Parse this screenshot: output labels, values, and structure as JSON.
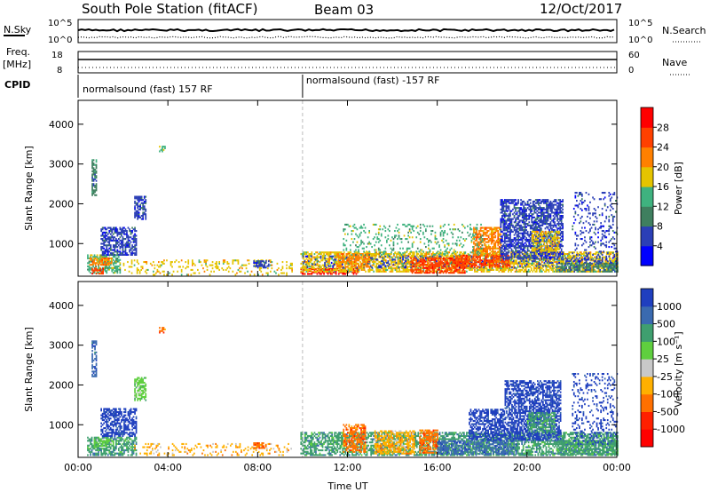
{
  "header": {
    "station": "South Pole Station (fitACF)",
    "beam": "Beam 03",
    "date": "12/Oct/2017"
  },
  "top_panels": {
    "nsky_label": "N.Sky",
    "nsky_ticks": [
      "10^5",
      "10^0"
    ],
    "nsearch_label": "N.Search",
    "nsearch_ticks": [
      "10^5",
      "10^0"
    ],
    "freq_label_1": "Freq.",
    "freq_label_2": "[MHz]",
    "freq_ticks": [
      "18",
      "8"
    ],
    "nave_label": "Nave",
    "nave_ticks": [
      "60",
      "0"
    ],
    "cpid_label": "CPID",
    "cpid_segments": [
      {
        "label": "normalsound (fast) 157 RF",
        "start_hour": 0
      },
      {
        "label": "normalsound (fast) -157 RF",
        "start_hour": 10
      }
    ]
  },
  "chart_data": [
    {
      "type": "heatmap",
      "title": "",
      "xlabel": "",
      "ylabel": "Slant Range [km]",
      "xlim": [
        0,
        24
      ],
      "ylim": [
        180,
        4600
      ],
      "xticks": [
        "00:00",
        "04:00",
        "08:00",
        "12:00",
        "16:00",
        "20:00",
        "00:00"
      ],
      "yticks": [
        "1000",
        "2000",
        "3000",
        "4000"
      ],
      "colorbar": {
        "label": "Power [dB]",
        "ticks": [
          "4",
          "8",
          "12",
          "16",
          "20",
          "24",
          "28"
        ],
        "colors": [
          "#0000ff",
          "#2b3fb6",
          "#3f7f5f",
          "#3fb27f",
          "#e5c400",
          "#ff8000",
          "#ff4000",
          "#ff0000"
        ]
      },
      "regions": [
        {
          "t": [
            0.4,
            1.9
          ],
          "r": [
            250,
            700
          ],
          "level": 3
        },
        {
          "t": [
            0.5,
            1.5
          ],
          "r": [
            450,
            620
          ],
          "level": 5
        },
        {
          "t": [
            0.6,
            1.1
          ],
          "r": [
            230,
            360
          ],
          "level": 6
        },
        {
          "t": [
            1.0,
            2.6
          ],
          "r": [
            700,
            1400
          ],
          "level": 1
        },
        {
          "t": [
            2.5,
            3.0
          ],
          "r": [
            1600,
            2200
          ],
          "level": 1
        },
        {
          "t": [
            0.6,
            0.8
          ],
          "r": [
            2200,
            3100
          ],
          "level": 2
        },
        {
          "t": [
            3.6,
            3.9
          ],
          "r": [
            3300,
            3450
          ],
          "level": 3
        },
        {
          "t": [
            2.0,
            9.5
          ],
          "r": [
            200,
            600
          ],
          "level": 4,
          "sparse": true
        },
        {
          "t": [
            7.8,
            8.5
          ],
          "r": [
            380,
            560
          ],
          "level": 1
        },
        {
          "t": [
            9.9,
            12.5
          ],
          "r": [
            220,
            380
          ],
          "level": 7
        },
        {
          "t": [
            9.9,
            24.0
          ],
          "r": [
            280,
            800
          ],
          "level": 4
        },
        {
          "t": [
            10.0,
            24.0
          ],
          "r": [
            380,
            700
          ],
          "level": 1,
          "sparse": true
        },
        {
          "t": [
            11.5,
            13.0
          ],
          "r": [
            400,
            760
          ],
          "level": 5
        },
        {
          "t": [
            14.8,
            17.2
          ],
          "r": [
            250,
            640
          ],
          "level": 6
        },
        {
          "t": [
            16.8,
            19.2
          ],
          "r": [
            400,
            700
          ],
          "level": 6
        },
        {
          "t": [
            17.6,
            18.8
          ],
          "r": [
            700,
            1400
          ],
          "level": 5
        },
        {
          "t": [
            11.8,
            18.0
          ],
          "r": [
            700,
            1500
          ],
          "level": 3,
          "sparse": true
        },
        {
          "t": [
            18.8,
            21.6
          ],
          "r": [
            600,
            2100
          ],
          "level": 1
        },
        {
          "t": [
            20.2,
            21.4
          ],
          "r": [
            800,
            1300
          ],
          "level": 4
        },
        {
          "t": [
            21.3,
            24.0
          ],
          "r": [
            280,
            520
          ],
          "level": 2
        },
        {
          "t": [
            22.0,
            24.0
          ],
          "r": [
            500,
            2300
          ],
          "level": 1,
          "sparse": true
        }
      ]
    },
    {
      "type": "heatmap",
      "title": "",
      "xlabel": "Time UT",
      "ylabel": "Slant Range [km]",
      "xlim": [
        0,
        24
      ],
      "ylim": [
        180,
        4600
      ],
      "xticks": [
        "00:00",
        "04:00",
        "08:00",
        "12:00",
        "16:00",
        "20:00",
        "00:00"
      ],
      "yticks": [
        "1000",
        "2000",
        "3000",
        "4000"
      ],
      "colorbar": {
        "label": "Velocity [m s⁻¹]",
        "ticks": [
          "1000",
          "500",
          "100",
          "25",
          "-25",
          "-100",
          "-500",
          "-1000"
        ],
        "colors": [
          "#1f3fbf",
          "#3a6ab0",
          "#3f9f6f",
          "#5fcf3f",
          "#c8c8c8",
          "#ffb000",
          "#ff7000",
          "#ff2000",
          "#ff0000"
        ]
      },
      "regions": [
        {
          "t": [
            0.4,
            2.6
          ],
          "r": [
            220,
            700
          ],
          "level": 2
        },
        {
          "t": [
            0.7,
            1.6
          ],
          "r": [
            450,
            620
          ],
          "level": 3
        },
        {
          "t": [
            1.0,
            2.6
          ],
          "r": [
            700,
            1400
          ],
          "level": 0
        },
        {
          "t": [
            2.5,
            3.0
          ],
          "r": [
            1600,
            2200
          ],
          "level": 3
        },
        {
          "t": [
            0.6,
            0.8
          ],
          "r": [
            2200,
            3100
          ],
          "level": 1
        },
        {
          "t": [
            3.6,
            3.9
          ],
          "r": [
            3300,
            3450
          ],
          "level": 6
        },
        {
          "t": [
            2.5,
            9.5
          ],
          "r": [
            220,
            520
          ],
          "level": 5,
          "sparse": true
        },
        {
          "t": [
            7.8,
            8.4
          ],
          "r": [
            400,
            560
          ],
          "level": 6
        },
        {
          "t": [
            9.9,
            24.0
          ],
          "r": [
            220,
            800
          ],
          "level": 2
        },
        {
          "t": [
            11.8,
            12.8
          ],
          "r": [
            300,
            1000
          ],
          "level": 6
        },
        {
          "t": [
            13.2,
            15.0
          ],
          "r": [
            260,
            860
          ],
          "level": 5
        },
        {
          "t": [
            15.2,
            16.0
          ],
          "r": [
            280,
            860
          ],
          "level": 6
        },
        {
          "t": [
            16.0,
            19.5
          ],
          "r": [
            250,
            600
          ],
          "level": 1
        },
        {
          "t": [
            17.4,
            19.0
          ],
          "r": [
            600,
            1400
          ],
          "level": 0
        },
        {
          "t": [
            19.0,
            21.5
          ],
          "r": [
            600,
            2100
          ],
          "level": 0
        },
        {
          "t": [
            20.0,
            21.2
          ],
          "r": [
            800,
            1300
          ],
          "level": 2
        },
        {
          "t": [
            21.3,
            24.0
          ],
          "r": [
            250,
            600
          ],
          "level": 2
        },
        {
          "t": [
            22.0,
            24.0
          ],
          "r": [
            500,
            2300
          ],
          "level": 0,
          "sparse": true
        }
      ]
    }
  ]
}
